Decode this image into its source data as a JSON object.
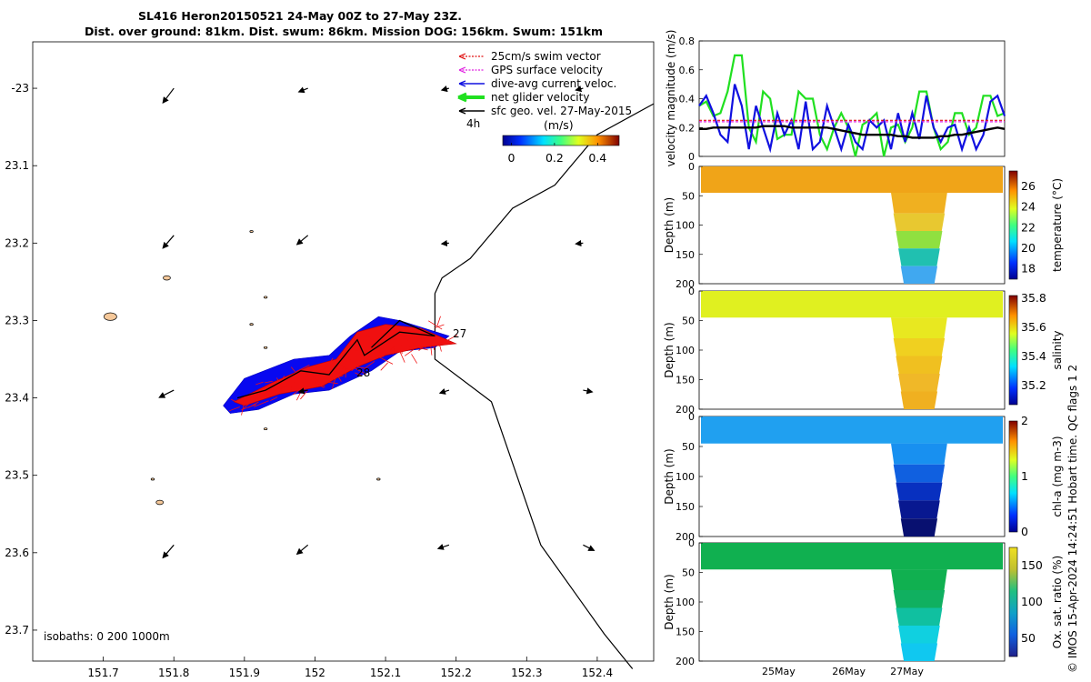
{
  "title": {
    "line1": "SL416 Heron20150521 24-May 00Z to 27-May 23Z.",
    "line2": "Dist. over ground: 81km. Dist. swum: 86km. Mission DOG: 156km. Swum: 151km"
  },
  "credit": "© IMOS 15-Apr-2024 14:24:51 Hobart time. QC flags 1  2",
  "chart_data": [
    {
      "type": "map",
      "name": "glider track map",
      "xlim": [
        151.6,
        152.48
      ],
      "ylim": [
        -23.74,
        -22.94
      ],
      "x_ticks": [
        151.7,
        151.8,
        151.9,
        152,
        152.1,
        152.2,
        152.3,
        152.4
      ],
      "x_tick_labels": [
        "151.7",
        "151.8",
        "151.9",
        "152",
        "152.1",
        "152.2",
        "152.3",
        "152.4"
      ],
      "y_ticks": [
        -23.0,
        -23.1,
        -23.2,
        -23.3,
        -23.4,
        -23.5,
        -23.6,
        -23.7
      ],
      "y_tick_labels": [
        "-23",
        "23.1",
        "23.2",
        "23.3",
        "23.4",
        "23.5",
        "23.6",
        "23.7"
      ],
      "legend": {
        "position": "top-right",
        "entries": [
          {
            "label": "25cm/s swim vector",
            "color": "#e01010",
            "style": "dotted arrow"
          },
          {
            "label": "GPS surface velocity",
            "color": "#e020e0",
            "style": "dotted arrow"
          },
          {
            "label": "dive-avg current veloc.",
            "color": "#1010e0",
            "style": "arrow"
          },
          {
            "label": "net glider velocity",
            "color": "#20e020",
            "style": "thick arrow"
          },
          {
            "label": "sfc geo. vel. 27-May-2015",
            "color": "#000000",
            "style": "arrow"
          }
        ]
      },
      "scale_label": "4h",
      "colorbar": {
        "title": "(m/s)",
        "ticks": [
          "0",
          "0.2",
          "0.4"
        ],
        "range": [
          -0.04,
          0.5
        ]
      },
      "day_labels": [
        "27",
        "28"
      ],
      "isobath_label": "isobaths: 0   200  1000m",
      "track": [
        [
          151.89,
          -23.4
        ],
        [
          151.93,
          -23.39
        ],
        [
          151.98,
          -23.365
        ],
        [
          152.02,
          -23.37
        ],
        [
          152.06,
          -23.325
        ],
        [
          152.07,
          -23.345
        ],
        [
          152.12,
          -23.315
        ],
        [
          152.17,
          -23.32
        ],
        [
          152.12,
          -23.3
        ],
        [
          152.08,
          -23.335
        ]
      ],
      "isobath_line": [
        [
          152.48,
          -23.02
        ],
        [
          152.4,
          -23.06
        ],
        [
          152.34,
          -23.125
        ],
        [
          152.28,
          -23.155
        ],
        [
          152.22,
          -23.22
        ],
        [
          152.18,
          -23.245
        ],
        [
          152.17,
          -23.265
        ],
        [
          152.17,
          -23.35
        ],
        [
          152.25,
          -23.405
        ],
        [
          152.32,
          -23.59
        ],
        [
          152.41,
          -23.705
        ],
        [
          152.45,
          -23.75
        ]
      ],
      "geo_vectors": [
        {
          "lon": 151.8,
          "lat": -23.0,
          "u": -0.3,
          "v": 0.4
        },
        {
          "lon": 151.99,
          "lat": -23.0,
          "u": -0.25,
          "v": 0.1
        },
        {
          "lon": 152.19,
          "lat": -23.0,
          "u": -0.2,
          "v": 0.05
        },
        {
          "lon": 152.38,
          "lat": -23.0,
          "u": -0.2,
          "v": 0.05
        },
        {
          "lon": 151.8,
          "lat": -23.19,
          "u": -0.3,
          "v": 0.35
        },
        {
          "lon": 151.99,
          "lat": -23.19,
          "u": -0.3,
          "v": 0.25
        },
        {
          "lon": 152.19,
          "lat": -23.2,
          "u": -0.2,
          "v": 0.02
        },
        {
          "lon": 152.38,
          "lat": -23.2,
          "u": -0.2,
          "v": 0.02
        },
        {
          "lon": 151.8,
          "lat": -23.39,
          "u": -0.4,
          "v": 0.2
        },
        {
          "lon": 151.99,
          "lat": -23.39,
          "u": -0.25,
          "v": 0.05
        },
        {
          "lon": 152.19,
          "lat": -23.39,
          "u": -0.25,
          "v": 0.08
        },
        {
          "lon": 152.38,
          "lat": -23.39,
          "u": 0.25,
          "v": 0.05
        },
        {
          "lon": 151.8,
          "lat": -23.59,
          "u": -0.3,
          "v": 0.35
        },
        {
          "lon": 151.99,
          "lat": -23.59,
          "u": -0.3,
          "v": 0.25
        },
        {
          "lon": 152.19,
          "lat": -23.59,
          "u": -0.3,
          "v": 0.1
        },
        {
          "lon": 152.38,
          "lat": -23.59,
          "u": 0.3,
          "v": 0.15
        }
      ],
      "islands": [
        [
          151.71,
          -23.295
        ],
        [
          151.79,
          -23.245
        ],
        [
          151.78,
          -23.535
        ],
        [
          151.93,
          -23.27
        ],
        [
          151.91,
          -23.305
        ],
        [
          151.93,
          -23.335
        ],
        [
          151.93,
          -23.44
        ],
        [
          152.09,
          -23.505
        ],
        [
          151.77,
          -23.505
        ],
        [
          151.91,
          -23.185
        ]
      ]
    },
    {
      "type": "line",
      "name": "velocity magnitude",
      "ylabel": "velocity magnitude (m/s)",
      "ylim": [
        0,
        0.8
      ],
      "y_ticks": [
        "0",
        "0.2",
        "0.4",
        "0.6",
        "0.8"
      ],
      "x_range": [
        0,
        1
      ],
      "series": [
        {
          "name": "net glider velocity",
          "color": "#20e020",
          "y": [
            0.35,
            0.38,
            0.28,
            0.3,
            0.45,
            0.7,
            0.7,
            0.2,
            0.1,
            0.45,
            0.4,
            0.12,
            0.15,
            0.15,
            0.45,
            0.4,
            0.4,
            0.15,
            0.05,
            0.2,
            0.3,
            0.2,
            0.0,
            0.22,
            0.25,
            0.3,
            0.0,
            0.2,
            0.22,
            0.1,
            0.2,
            0.45,
            0.45,
            0.2,
            0.05,
            0.1,
            0.3,
            0.3,
            0.15,
            0.2,
            0.42,
            0.42,
            0.28,
            0.3
          ]
        },
        {
          "name": "dive-avg current veloc.",
          "color": "#1010e0",
          "y": [
            0.35,
            0.42,
            0.3,
            0.15,
            0.1,
            0.5,
            0.35,
            0.05,
            0.35,
            0.2,
            0.05,
            0.3,
            0.15,
            0.25,
            0.05,
            0.38,
            0.05,
            0.1,
            0.35,
            0.2,
            0.05,
            0.22,
            0.1,
            0.05,
            0.25,
            0.2,
            0.25,
            0.05,
            0.3,
            0.1,
            0.3,
            0.12,
            0.42,
            0.2,
            0.1,
            0.2,
            0.22,
            0.05,
            0.2,
            0.05,
            0.15,
            0.38,
            0.42,
            0.28
          ]
        },
        {
          "name": "sfc geo. vel. 27-May-2015",
          "color": "#000000",
          "y": [
            0.19,
            0.19,
            0.2,
            0.2,
            0.2,
            0.2,
            0.2,
            0.2,
            0.2,
            0.21,
            0.21,
            0.21,
            0.21,
            0.2,
            0.2,
            0.2,
            0.2,
            0.2,
            0.2,
            0.19,
            0.18,
            0.17,
            0.16,
            0.15,
            0.15,
            0.15,
            0.15,
            0.15,
            0.14,
            0.14,
            0.13,
            0.13,
            0.13,
            0.13,
            0.14,
            0.14,
            0.15,
            0.15,
            0.16,
            0.17,
            0.18,
            0.19,
            0.2,
            0.19
          ]
        },
        {
          "name": "25cm/s swim vector",
          "color": "#e01010",
          "dashed": true,
          "y": [
            0.25,
            0.25
          ]
        },
        {
          "name": "GPS surface velocity",
          "color": "#e020e0",
          "dashed": true,
          "y": [
            0.24,
            0.24
          ]
        }
      ]
    },
    {
      "type": "heatmap",
      "name": "temperature section",
      "variable": "temperature",
      "colorbar_label": "temperature (°C)",
      "clim": [
        17,
        27.5
      ],
      "cb_ticks": [
        "26",
        "24",
        "22",
        "20",
        "18"
      ],
      "ylabel": "Depth (m)",
      "ylim": [
        0,
        200
      ],
      "y_ticks": [
        "0",
        "50",
        "100",
        "150",
        "200"
      ],
      "surface_value": 24.8,
      "deep_value": 18.0
    },
    {
      "type": "heatmap",
      "name": "salinity section",
      "variable": "salinity",
      "colorbar_label": "salinity",
      "clim": [
        35.07,
        35.82
      ],
      "cb_ticks": [
        "35.8",
        "35.6",
        "35.4",
        "35.2"
      ],
      "ylabel": "Depth (m)",
      "ylim": [
        0,
        200
      ],
      "y_ticks": [
        "0",
        "50",
        "100",
        "150",
        "200"
      ],
      "surface_value": 35.55,
      "deep_value": 35.68
    },
    {
      "type": "heatmap",
      "name": "chlorophyll section",
      "variable": "chl-a",
      "colorbar_label": "chl-a (mg m-3)",
      "clim": [
        0,
        2
      ],
      "cb_ticks": [
        "2",
        "1",
        "0"
      ],
      "ylabel": "Depth (m)",
      "ylim": [
        0,
        200
      ],
      "y_ticks": [
        "0",
        "50",
        "100",
        "150",
        "200"
      ],
      "surface_value": 0.55,
      "deep_value": 0.05
    },
    {
      "type": "heatmap",
      "name": "oxygen section",
      "variable": "oxygen saturation",
      "colorbar_label": "Ox. sat. ratio (%)",
      "clim": [
        25,
        175
      ],
      "cb_ticks": [
        "150",
        "100",
        "50"
      ],
      "ylabel": "Depth (m)",
      "ylim": [
        0,
        200
      ],
      "y_ticks": [
        "0",
        "50",
        "100",
        "150",
        "200"
      ],
      "surface_value": 112,
      "deep_value": 72,
      "x_tick_labels": [
        "25May",
        "26May",
        "27May"
      ]
    }
  ]
}
